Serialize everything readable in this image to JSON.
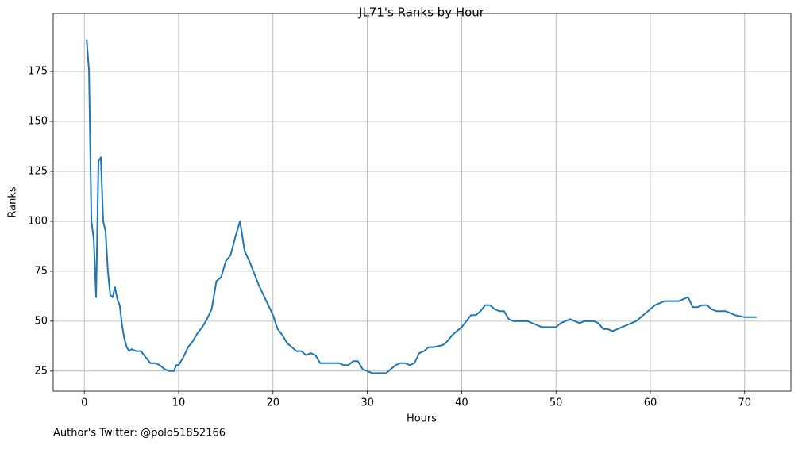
{
  "chart_data": {
    "type": "line",
    "title": "JL71's Ranks by Hour",
    "xlabel": "Hours",
    "ylabel": "Ranks",
    "footer": "Author's Twitter: @polo51852166",
    "x": [
      0.25,
      0.5,
      0.75,
      1.0,
      1.25,
      1.5,
      1.75,
      2.0,
      2.25,
      2.5,
      2.75,
      3.0,
      3.25,
      3.5,
      3.75,
      4.0,
      4.25,
      4.5,
      4.75,
      5.0,
      5.5,
      6.0,
      6.5,
      7.0,
      7.5,
      8.0,
      8.5,
      9.0,
      9.5,
      9.75,
      10.0,
      10.5,
      11.0,
      11.5,
      12.0,
      12.5,
      13.0,
      13.5,
      13.75,
      14.0,
      14.5,
      15.0,
      15.5,
      16.0,
      16.5,
      17.0,
      17.5,
      18.0,
      18.5,
      19.0,
      19.5,
      20.0,
      20.5,
      21.0,
      21.5,
      22.0,
      22.5,
      23.0,
      23.5,
      24.0,
      24.5,
      25.0,
      25.5,
      26.0,
      27.0,
      27.5,
      28.0,
      28.5,
      29.0,
      29.5,
      30.0,
      30.5,
      31.0,
      32.0,
      32.5,
      33.0,
      33.5,
      34.0,
      34.5,
      35.0,
      35.5,
      36.0,
      36.5,
      37.0,
      38.0,
      38.5,
      39.0,
      39.5,
      40.0,
      40.5,
      41.0,
      41.5,
      42.0,
      42.5,
      43.0,
      43.5,
      44.0,
      44.5,
      45.0,
      45.5,
      46.0,
      47.0,
      47.5,
      48.0,
      48.5,
      49.0,
      50.0,
      50.5,
      51.0,
      51.5,
      52.0,
      52.5,
      53.0,
      54.0,
      54.5,
      55.0,
      55.5,
      56.0,
      56.5,
      57.0,
      57.5,
      58.0,
      58.5,
      59.0,
      59.5,
      60.0,
      60.5,
      61.0,
      61.5,
      62.0,
      63.0,
      63.5,
      64.0,
      64.5,
      65.0,
      65.5,
      66.0,
      66.5,
      67.0,
      68.0,
      68.5,
      69.0,
      70.0,
      71.25
    ],
    "values": [
      191,
      175,
      100,
      91,
      62,
      130,
      132,
      100,
      95,
      75,
      63,
      62,
      67,
      61,
      58,
      48,
      41,
      37,
      35,
      36,
      35,
      35,
      32,
      29,
      29,
      28,
      26,
      25,
      25,
      28,
      28,
      32,
      37,
      40,
      44,
      47,
      51,
      56,
      63,
      70,
      72,
      80,
      83,
      92,
      100,
      85,
      80,
      74,
      68,
      63,
      58,
      53,
      46,
      43,
      39,
      37,
      35,
      35,
      33,
      34,
      33,
      29,
      29,
      29,
      29,
      28,
      28,
      30,
      30,
      26,
      25,
      24,
      24,
      24,
      26,
      28,
      29,
      29,
      28,
      29,
      34,
      35,
      37,
      37,
      38,
      40,
      43,
      45,
      47,
      50,
      53,
      53,
      55,
      58,
      58,
      56,
      55,
      55,
      51,
      50,
      50,
      50,
      49,
      48,
      47,
      47,
      47,
      49,
      50,
      51,
      50,
      49,
      50,
      50,
      49,
      46,
      46,
      45,
      46,
      47,
      48,
      49,
      50,
      52,
      54,
      56,
      58,
      59,
      60,
      60,
      60,
      61,
      62,
      57,
      57,
      58,
      58,
      56,
      55,
      55,
      54,
      53,
      52,
      52
    ],
    "color": "#1f77b4",
    "xlim": [
      -3.3,
      74.9
    ],
    "ylim": [
      15,
      204
    ],
    "xticks": [
      0,
      10,
      20,
      30,
      40,
      50,
      60,
      70
    ],
    "yticks": [
      25,
      50,
      75,
      100,
      125,
      150,
      175
    ],
    "grid": true
  }
}
